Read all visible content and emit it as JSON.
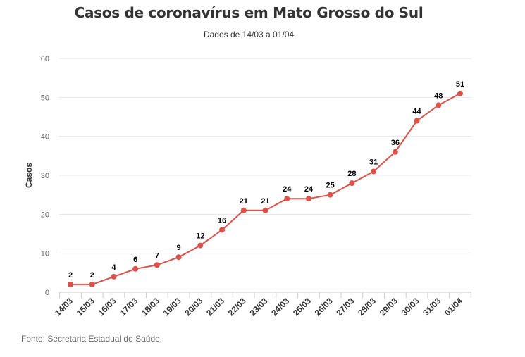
{
  "chart_data": {
    "type": "line",
    "title": "Casos de coronavírus em Mato Grosso do Sul",
    "subtitle": "Dados de 14/03 a 01/04",
    "ylabel": "Casos",
    "xlabel": "",
    "ylim": [
      0,
      60
    ],
    "yticks": [
      0,
      10,
      20,
      30,
      40,
      50,
      60
    ],
    "grid": true,
    "categories": [
      "14/03",
      "15/03",
      "16/03",
      "17/03",
      "18/03",
      "19/03",
      "20/03",
      "21/03",
      "22/03",
      "23/03",
      "24/03",
      "25/03",
      "26/03",
      "27/03",
      "28/03",
      "29/03",
      "30/03",
      "31/03",
      "01/04"
    ],
    "values": [
      2,
      2,
      4,
      6,
      7,
      9,
      12,
      16,
      21,
      21,
      24,
      24,
      25,
      28,
      31,
      36,
      44,
      48,
      51
    ],
    "data_labels": true
  },
  "colors": {
    "line": "#d9534a",
    "grid": "#e6e6e6"
  },
  "source": "Fonte: Secretaria Estadual de Saúde"
}
